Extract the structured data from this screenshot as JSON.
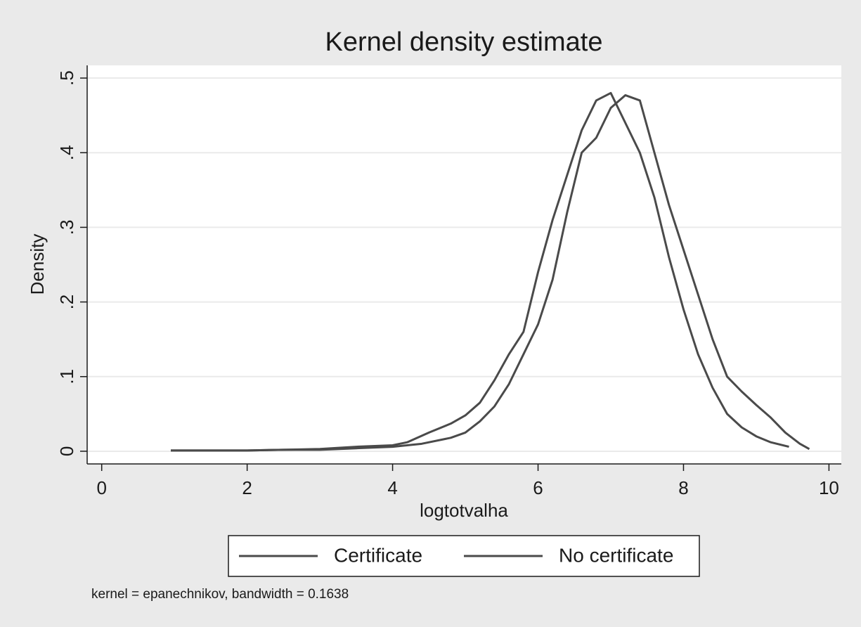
{
  "chart_data": {
    "type": "line",
    "title": "Kernel density estimate",
    "x_label": "logtotvalha",
    "y_label": "Density",
    "note": "kernel = epanechnikov, bandwidth = 0.1638",
    "xlim": [
      -0.2,
      10.17
    ],
    "ylim": [
      -0.017,
      0.517
    ],
    "xticks": [
      0,
      2,
      4,
      6,
      8,
      10
    ],
    "yticks": [
      0,
      {
        "value": 0.1,
        "label": ".1"
      },
      {
        "value": 0.2,
        "label": ".2"
      },
      {
        "value": 0.3,
        "label": ".3"
      },
      {
        "value": 0.4,
        "label": ".4"
      },
      {
        "value": 0.5,
        "label": ".5"
      }
    ],
    "grid": true,
    "legend": "bottom",
    "series": [
      {
        "name": "Certificate",
        "color": "#4a4a4a",
        "x": [
          0.95,
          1.5,
          2,
          2.5,
          3,
          3.5,
          4,
          4.2,
          4.5,
          4.8,
          5,
          5.2,
          5.4,
          5.6,
          5.8,
          6.0,
          6.2,
          6.4,
          6.6,
          6.8,
          7.0,
          7.2,
          7.4,
          7.6,
          7.8,
          8.0,
          8.2,
          8.4,
          8.6,
          8.8,
          9.0,
          9.2,
          9.45
        ],
        "values": [
          0.001,
          0.001,
          0.001,
          0.002,
          0.003,
          0.006,
          0.008,
          0.012,
          0.025,
          0.037,
          0.048,
          0.065,
          0.095,
          0.13,
          0.16,
          0.24,
          0.31,
          0.37,
          0.43,
          0.47,
          0.48,
          0.44,
          0.4,
          0.34,
          0.26,
          0.19,
          0.13,
          0.085,
          0.05,
          0.032,
          0.02,
          0.012,
          0.006
        ]
      },
      {
        "name": "No certificate",
        "color": "#4a4a4a",
        "x": [
          0.95,
          1.5,
          2,
          2.5,
          3,
          3.5,
          4,
          4.4,
          4.8,
          5,
          5.2,
          5.4,
          5.6,
          5.8,
          6.0,
          6.2,
          6.4,
          6.6,
          6.8,
          7.0,
          7.2,
          7.4,
          7.6,
          7.8,
          8.0,
          8.2,
          8.4,
          8.6,
          8.8,
          9.0,
          9.2,
          9.4,
          9.6,
          9.73
        ],
        "values": [
          0.001,
          0.001,
          0.001,
          0.002,
          0.002,
          0.004,
          0.006,
          0.01,
          0.018,
          0.025,
          0.04,
          0.06,
          0.09,
          0.13,
          0.17,
          0.23,
          0.32,
          0.4,
          0.42,
          0.46,
          0.477,
          0.47,
          0.4,
          0.33,
          0.27,
          0.21,
          0.15,
          0.1,
          0.08,
          0.062,
          0.045,
          0.025,
          0.01,
          0.003
        ]
      }
    ]
  }
}
